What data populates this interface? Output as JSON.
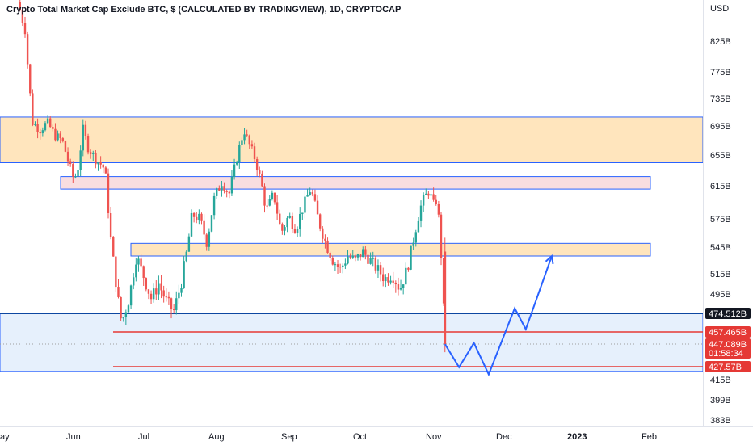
{
  "chart_data": {
    "type": "candlestick",
    "title": "Crypto Total Market Cap Exclude BTC, $ (CALCULATED BY TRADINGVIEW), 1D, CRYPTOCAP",
    "currency_label": "USD",
    "y_tick_labels": [
      "825B",
      "775B",
      "735B",
      "695B",
      "655B",
      "615B",
      "575B",
      "545B",
      "515B",
      "495B",
      "415B",
      "399B",
      "383B"
    ],
    "y_tick_values": [
      825,
      775,
      735,
      695,
      655,
      615,
      575,
      545,
      515,
      495,
      415,
      399,
      383
    ],
    "x_tick_labels": [
      "ay",
      "Jun",
      "Jul",
      "Aug",
      "Sep",
      "Oct",
      "Nov",
      "Dec",
      "2023",
      "Feb"
    ],
    "ylim": [
      380,
      880
    ],
    "price_series": [
      {
        "t": 0.0,
        "p": 880
      },
      {
        "t": 0.5,
        "p": 860
      },
      {
        "t": 1.0,
        "p": 840
      },
      {
        "t": 1.5,
        "p": 760
      },
      {
        "t": 2.0,
        "p": 700
      },
      {
        "t": 3.0,
        "p": 690
      },
      {
        "t": 4.0,
        "p": 700
      },
      {
        "t": 5.0,
        "p": 682
      },
      {
        "t": 6.0,
        "p": 675
      },
      {
        "t": 7.0,
        "p": 640
      },
      {
        "t": 7.5,
        "p": 625
      },
      {
        "t": 8.0,
        "p": 630
      },
      {
        "t": 8.8,
        "p": 690
      },
      {
        "t": 9.5,
        "p": 665
      },
      {
        "t": 10.5,
        "p": 650
      },
      {
        "t": 11.5,
        "p": 640
      },
      {
        "t": 12.0,
        "p": 620
      },
      {
        "t": 12.3,
        "p": 570
      },
      {
        "t": 12.8,
        "p": 535
      },
      {
        "t": 13.5,
        "p": 490
      },
      {
        "t": 14.0,
        "p": 465
      },
      {
        "t": 15.0,
        "p": 490
      },
      {
        "t": 16.0,
        "p": 535
      },
      {
        "t": 17.0,
        "p": 512
      },
      {
        "t": 18.0,
        "p": 490
      },
      {
        "t": 19.0,
        "p": 505
      },
      {
        "t": 20.0,
        "p": 488
      },
      {
        "t": 21.0,
        "p": 476
      },
      {
        "t": 22.0,
        "p": 505
      },
      {
        "t": 22.8,
        "p": 540
      },
      {
        "t": 23.5,
        "p": 580
      },
      {
        "t": 24.5,
        "p": 575
      },
      {
        "t": 25.5,
        "p": 550
      },
      {
        "t": 26.5,
        "p": 600
      },
      {
        "t": 27.5,
        "p": 620
      },
      {
        "t": 28.5,
        "p": 605
      },
      {
        "t": 29.5,
        "p": 650
      },
      {
        "t": 30.5,
        "p": 690
      },
      {
        "t": 31.0,
        "p": 675
      },
      {
        "t": 32.0,
        "p": 650
      },
      {
        "t": 32.8,
        "p": 620
      },
      {
        "t": 33.5,
        "p": 585
      },
      {
        "t": 34.5,
        "p": 605
      },
      {
        "t": 35.5,
        "p": 560
      },
      {
        "t": 36.5,
        "p": 578
      },
      {
        "t": 37.5,
        "p": 565
      },
      {
        "t": 38.5,
        "p": 590
      },
      {
        "t": 39.5,
        "p": 612
      },
      {
        "t": 40.5,
        "p": 575
      },
      {
        "t": 41.5,
        "p": 550
      },
      {
        "t": 42.5,
        "p": 530
      },
      {
        "t": 43.5,
        "p": 520
      },
      {
        "t": 44.5,
        "p": 535
      },
      {
        "t": 45.5,
        "p": 530
      },
      {
        "t": 46.5,
        "p": 540
      },
      {
        "t": 47.5,
        "p": 530
      },
      {
        "t": 48.5,
        "p": 520
      },
      {
        "t": 49.5,
        "p": 510
      },
      {
        "t": 50.5,
        "p": 515
      },
      {
        "t": 51.5,
        "p": 500
      },
      {
        "t": 52.5,
        "p": 520
      },
      {
        "t": 53.5,
        "p": 560
      },
      {
        "t": 54.5,
        "p": 595
      },
      {
        "t": 55.5,
        "p": 610
      },
      {
        "t": 56.0,
        "p": 590
      },
      {
        "t": 56.5,
        "p": 600
      },
      {
        "t": 57.0,
        "p": 550
      },
      {
        "t": 57.3,
        "p": 500
      },
      {
        "t": 57.6,
        "p": 447
      }
    ],
    "zones": [
      {
        "type": "orange",
        "low": 645,
        "high": 708,
        "span": "full",
        "fill": "#ffe0b2",
        "stroke": "#2962ff"
      },
      {
        "type": "pink",
        "low": 611,
        "high": 627,
        "span": "from-jun-to-feb",
        "fill": "#f8d7da",
        "stroke": "#2962ff"
      },
      {
        "type": "orange",
        "low": 535,
        "high": 549,
        "span": "from-jul-to-feb",
        "fill": "#ffe0b2",
        "stroke": "#2962ff"
      },
      {
        "type": "blue",
        "low": 423,
        "high": 474.512,
        "span": "full",
        "fill": "#e3eefc",
        "stroke": "#2962ff"
      }
    ],
    "horizontal_lines": [
      {
        "value": 474.512,
        "color": "#0d47a1",
        "style": "solid"
      },
      {
        "value": 457.465,
        "color": "#e53935",
        "style": "solid"
      },
      {
        "value": 427.57,
        "color": "#e53935",
        "style": "solid"
      },
      {
        "value": 447.089,
        "color": "#9e9e9e",
        "style": "dotted"
      }
    ],
    "projection_path": [
      {
        "t": 57.6,
        "p": 447
      },
      {
        "t": 59.5,
        "p": 427
      },
      {
        "t": 61.5,
        "p": 448
      },
      {
        "t": 63.5,
        "p": 420
      },
      {
        "t": 67.0,
        "p": 480
      },
      {
        "t": 68.5,
        "p": 460
      },
      {
        "t": 72.0,
        "p": 535
      }
    ],
    "price_labels": [
      {
        "text": "474.512B",
        "value": 474.512,
        "bg": "#131722"
      },
      {
        "text": "457.465B",
        "value": 457.465,
        "bg": "#e53935"
      },
      {
        "text": "447.089B",
        "value": 447.089,
        "bg": "#e53935"
      },
      {
        "text": "01:58:34",
        "value": 447.089,
        "bg": "#e53935"
      },
      {
        "text": "427.57B",
        "value": 427.57,
        "bg": "#e53935"
      }
    ],
    "colors": {
      "up": "#26a69a",
      "down": "#ef5350",
      "projection": "#2962ff"
    },
    "grid": false,
    "legend": "none"
  }
}
